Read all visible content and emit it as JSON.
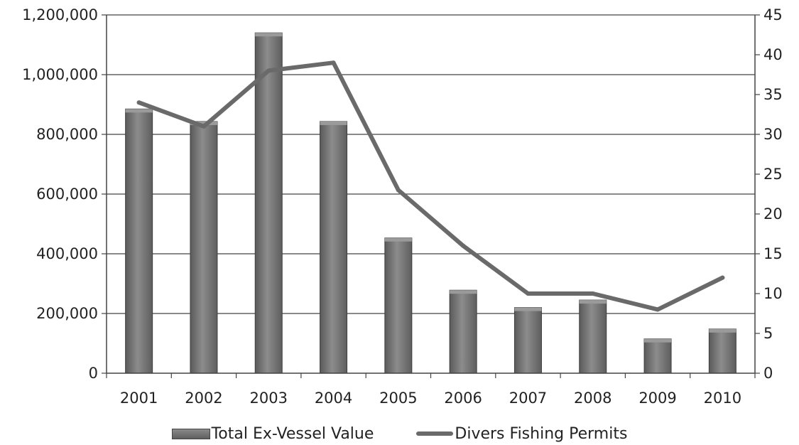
{
  "chart_data": {
    "type": "bar",
    "categories": [
      "2001",
      "2002",
      "2003",
      "2004",
      "2005",
      "2006",
      "2007",
      "2008",
      "2009",
      "2010"
    ],
    "series": [
      {
        "name": "Total Ex-Vessel Value",
        "type": "bar",
        "axis": "left",
        "values": [
          885000,
          843000,
          1140000,
          843000,
          453000,
          278000,
          220000,
          245000,
          115000,
          148000
        ]
      },
      {
        "name": "Divers Fishing Permits",
        "type": "line",
        "axis": "right",
        "values": [
          34,
          31,
          38,
          39,
          23,
          16,
          10,
          10,
          8,
          12
        ]
      }
    ],
    "y_left": {
      "min": 0,
      "max": 1200000,
      "step": 200000,
      "tick_labels": [
        "0",
        "200,000",
        "400,000",
        "600,000",
        "800,000",
        "1,000,000",
        "1,200,000"
      ]
    },
    "y_right": {
      "min": 0,
      "max": 45,
      "step": 5,
      "tick_labels": [
        "0",
        "5",
        "10",
        "15",
        "20",
        "25",
        "30",
        "35",
        "40",
        "45"
      ]
    },
    "legend_position": "bottom",
    "grid": true,
    "colors": {
      "bar": "#707070",
      "bar_edge": "#3f3f3f",
      "line": "#6a6a6a",
      "grid": "#444444"
    }
  },
  "legend": {
    "bar_label": "Total Ex-Vessel Value",
    "line_label": "Divers Fishing Permits"
  }
}
